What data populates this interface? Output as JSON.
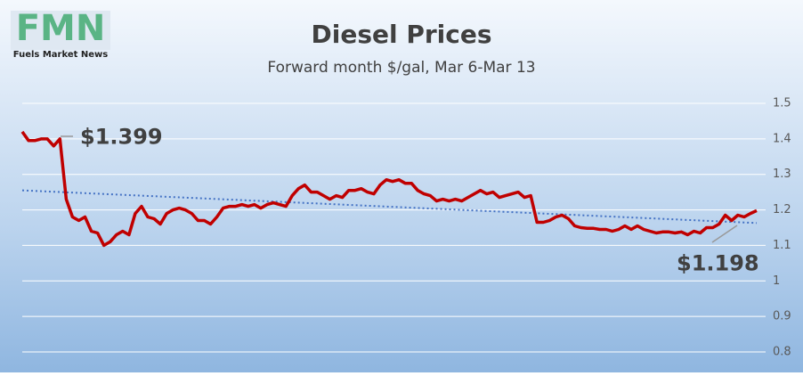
{
  "logo": {
    "letters": "FMN",
    "name": "Fuels Market News"
  },
  "chart_data": {
    "type": "line",
    "title": "Diesel Prices",
    "subtitle": "Forward month $/gal, Mar 6-Mar 13",
    "values": [
      1.42,
      1.395,
      1.395,
      1.4,
      1.4,
      1.38,
      1.4,
      1.23,
      1.18,
      1.17,
      1.18,
      1.14,
      1.135,
      1.1,
      1.11,
      1.13,
      1.14,
      1.13,
      1.19,
      1.21,
      1.18,
      1.175,
      1.16,
      1.19,
      1.2,
      1.205,
      1.2,
      1.19,
      1.17,
      1.17,
      1.16,
      1.18,
      1.205,
      1.21,
      1.21,
      1.215,
      1.21,
      1.215,
      1.205,
      1.215,
      1.22,
      1.215,
      1.21,
      1.24,
      1.26,
      1.27,
      1.25,
      1.25,
      1.24,
      1.23,
      1.24,
      1.235,
      1.255,
      1.255,
      1.26,
      1.25,
      1.245,
      1.27,
      1.285,
      1.28,
      1.285,
      1.275,
      1.275,
      1.255,
      1.245,
      1.24,
      1.225,
      1.23,
      1.225,
      1.23,
      1.225,
      1.235,
      1.245,
      1.255,
      1.245,
      1.25,
      1.235,
      1.24,
      1.245,
      1.25,
      1.235,
      1.24,
      1.165,
      1.165,
      1.17,
      1.18,
      1.185,
      1.175,
      1.155,
      1.15,
      1.148,
      1.148,
      1.145,
      1.145,
      1.14,
      1.145,
      1.155,
      1.145,
      1.155,
      1.145,
      1.14,
      1.135,
      1.138,
      1.138,
      1.135,
      1.138,
      1.13,
      1.14,
      1.135,
      1.15,
      1.15,
      1.16,
      1.185,
      1.17,
      1.185,
      1.18,
      1.19,
      1.198
    ],
    "color": "#c00000",
    "trendline": {
      "color": "#4472c4",
      "values": [
        1.255,
        1.163
      ]
    },
    "annotations": [
      {
        "text": "$1.399",
        "value": 1.399
      },
      {
        "text": "$1.198",
        "value": 1.198
      }
    ],
    "ylim": [
      0.8,
      1.5
    ],
    "yticks": [
      0.8,
      0.9,
      1,
      1.1,
      1.2,
      1.3,
      1.4,
      1.5
    ],
    "grid": true
  }
}
